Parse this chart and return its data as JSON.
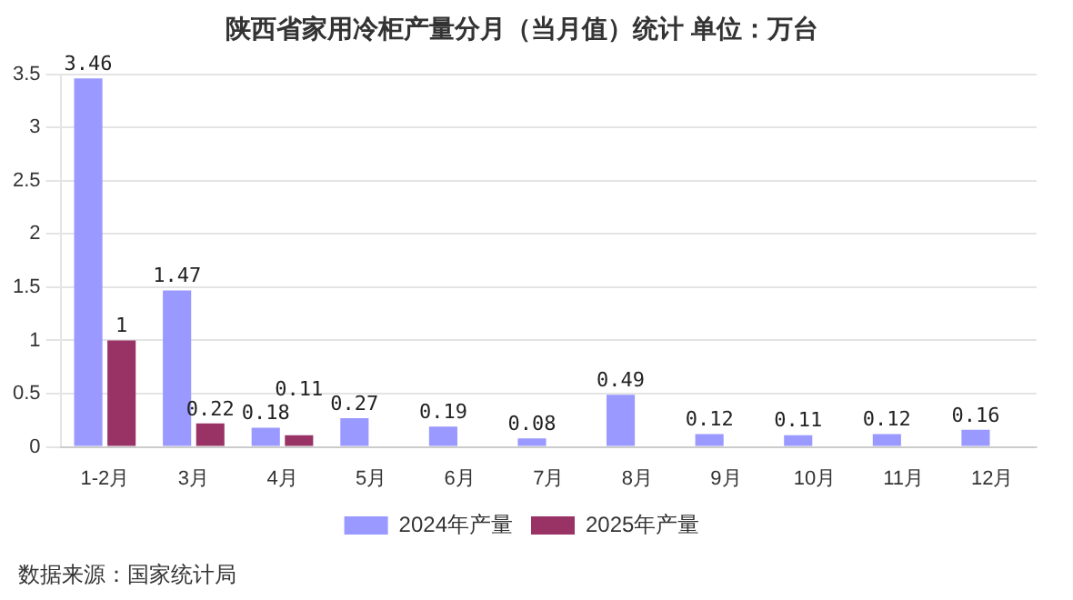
{
  "chart_data": {
    "type": "bar",
    "title": "陕西省家用冷柜产量分月（当月值）统计 单位：万台",
    "categories": [
      "1-2月",
      "3月",
      "4月",
      "5月",
      "6月",
      "7月",
      "8月",
      "9月",
      "10月",
      "11月",
      "12月"
    ],
    "series": [
      {
        "name": "2024年产量",
        "color": "#9999ff",
        "values": [
          3.46,
          1.47,
          0.18,
          0.27,
          0.19,
          0.08,
          0.49,
          0.12,
          0.11,
          0.12,
          0.16
        ]
      },
      {
        "name": "2025年产量",
        "color": "#993366",
        "values": [
          1,
          0.22,
          0.11,
          null,
          null,
          null,
          null,
          null,
          null,
          null,
          null
        ]
      }
    ],
    "ylim": [
      0,
      3.5
    ],
    "yticks": [
      0,
      0.5,
      1,
      1.5,
      2,
      2.5,
      3,
      3.5
    ],
    "grid": "y",
    "legend": "bottom",
    "data_labels": true,
    "annotations": [
      "数据来源：国家统计局"
    ]
  }
}
